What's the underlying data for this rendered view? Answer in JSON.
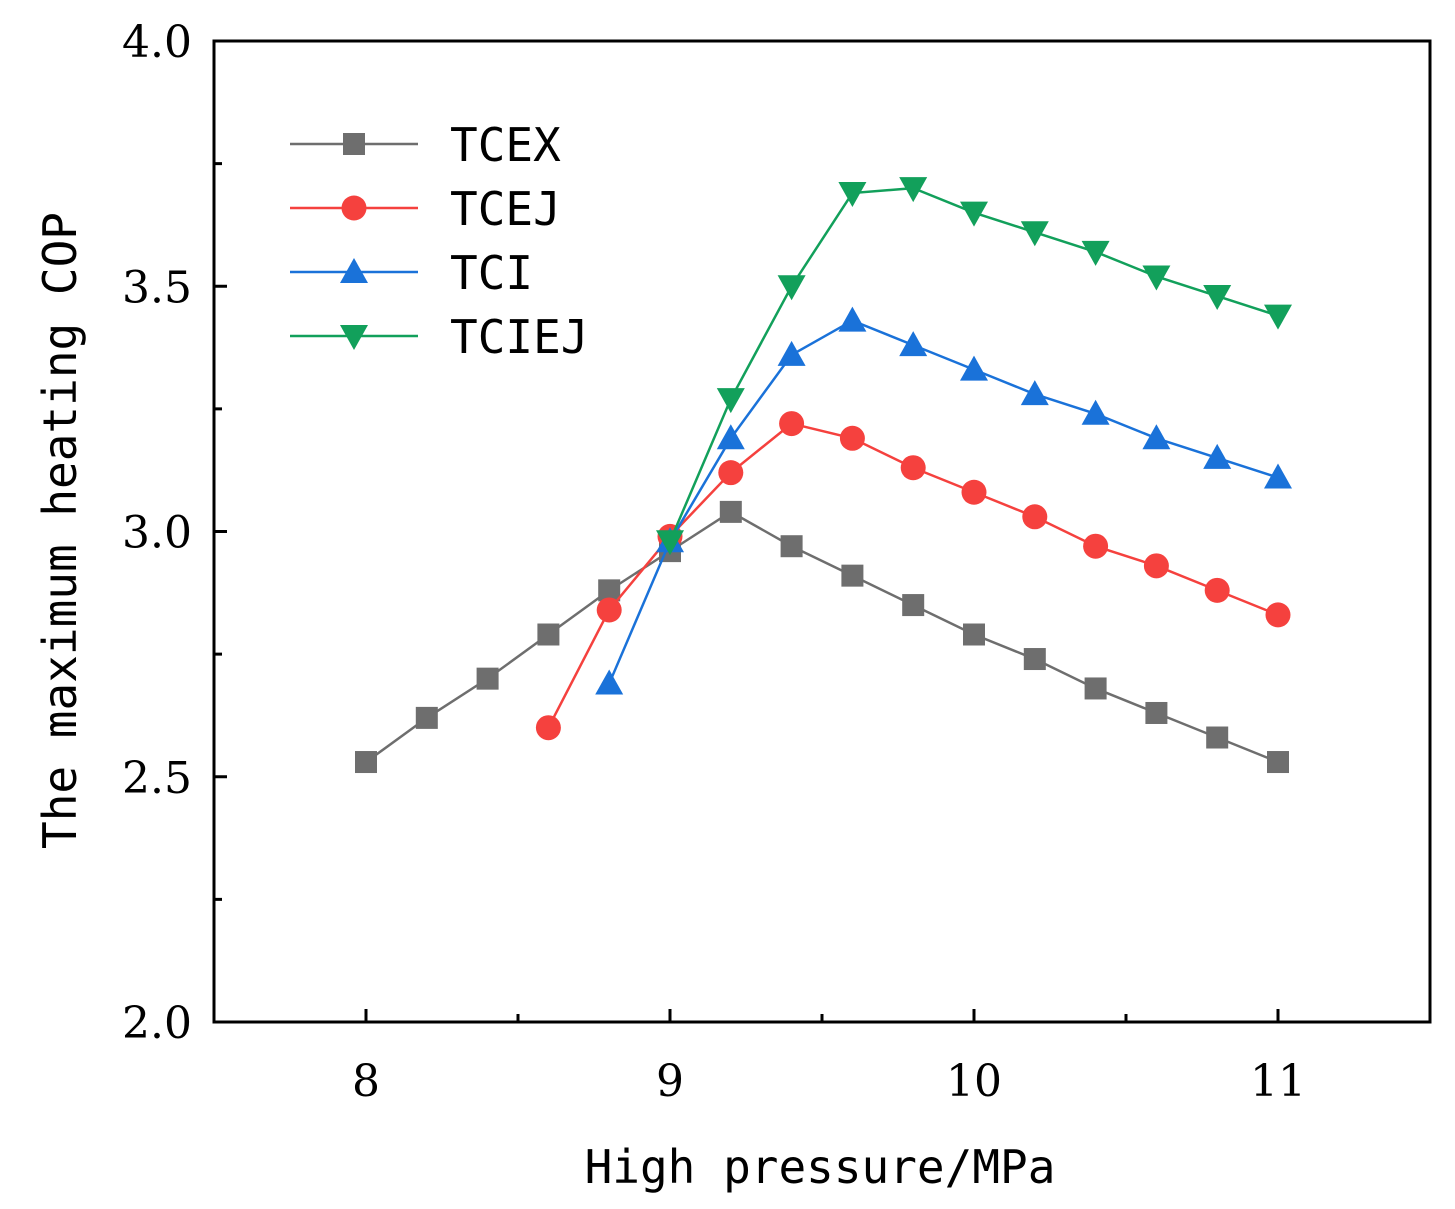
{
  "chart_data": {
    "type": "line",
    "title": "",
    "xlabel": "High pressure/MPa",
    "ylabel": "The maximum heating COP",
    "xlim": [
      7.5,
      11.5
    ],
    "ylim": [
      2.0,
      4.0
    ],
    "x_ticks": [
      8,
      9,
      10,
      11
    ],
    "x_tick_labels": [
      "8",
      "9",
      "10",
      "11"
    ],
    "x_minor_ticks": [
      8.5,
      9.5,
      10.5
    ],
    "y_ticks": [
      2.0,
      2.5,
      3.0,
      3.5,
      4.0
    ],
    "y_tick_labels": [
      "2.0",
      "2.5",
      "3.0",
      "3.5",
      "4.0"
    ],
    "y_minor_ticks": [
      2.25,
      2.75,
      3.25,
      3.75
    ],
    "grid": false,
    "legend_position": "top-left",
    "series": [
      {
        "name": "TCEX",
        "color": "#6e6e6e",
        "marker": "square",
        "x": [
          8.0,
          8.2,
          8.4,
          8.6,
          8.8,
          9.0,
          9.2,
          9.4,
          9.6,
          9.8,
          10.0,
          10.2,
          10.4,
          10.6,
          10.8,
          11.0
        ],
        "values": [
          2.53,
          2.62,
          2.7,
          2.79,
          2.88,
          2.96,
          3.04,
          2.97,
          2.91,
          2.85,
          2.79,
          2.74,
          2.68,
          2.63,
          2.58,
          2.53
        ]
      },
      {
        "name": "TCEJ",
        "color": "#f5413e",
        "marker": "circle",
        "x": [
          8.6,
          8.8,
          9.0,
          9.2,
          9.4,
          9.6,
          9.8,
          10.0,
          10.2,
          10.4,
          10.6,
          10.8,
          11.0
        ],
        "values": [
          2.6,
          2.84,
          2.99,
          3.12,
          3.22,
          3.19,
          3.13,
          3.08,
          3.03,
          2.97,
          2.93,
          2.88,
          2.83
        ]
      },
      {
        "name": "TCI",
        "color": "#1a72d9",
        "marker": "triangle-up",
        "x": [
          8.8,
          9.0,
          9.2,
          9.4,
          9.6,
          9.8,
          10.0,
          10.2,
          10.4,
          10.6,
          10.8,
          11.0
        ],
        "values": [
          2.69,
          2.98,
          3.19,
          3.36,
          3.43,
          3.38,
          3.33,
          3.28,
          3.24,
          3.19,
          3.15,
          3.11
        ]
      },
      {
        "name": "TCIEJ",
        "color": "#12a05b",
        "marker": "triangle-down",
        "x": [
          9.0,
          9.2,
          9.4,
          9.6,
          9.8,
          10.0,
          10.2,
          10.4,
          10.6,
          10.8,
          11.0
        ],
        "values": [
          2.98,
          3.27,
          3.5,
          3.69,
          3.7,
          3.65,
          3.61,
          3.57,
          3.52,
          3.48,
          3.44
        ]
      }
    ]
  }
}
